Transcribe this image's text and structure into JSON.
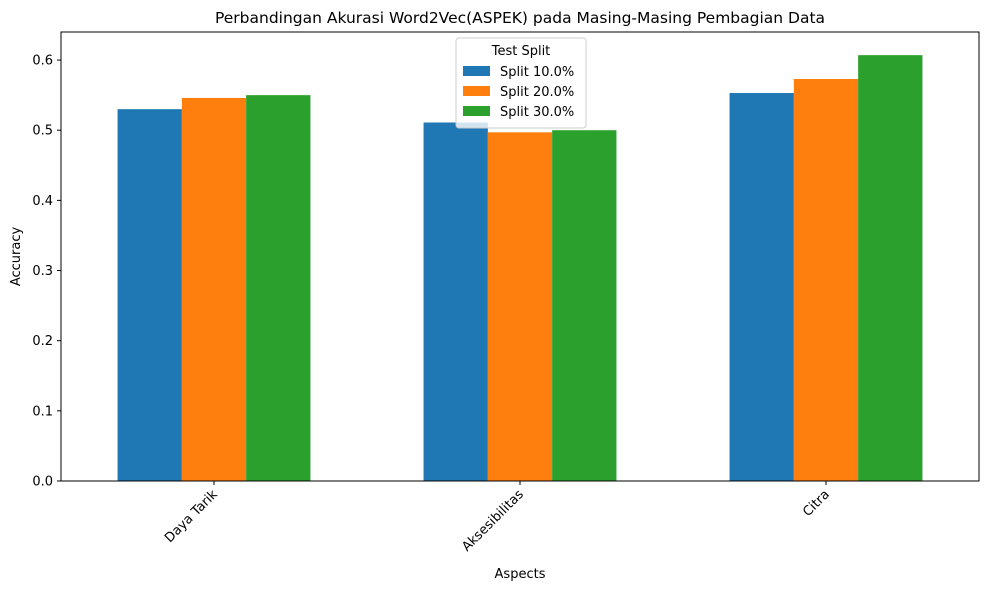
{
  "chart_data": {
    "type": "bar",
    "title": "Perbandingan Akurasi Word2Vec(ASPEK) pada Masing-Masing Pembagian Data",
    "xlabel": "Aspects",
    "ylabel": "Accuracy",
    "categories": [
      "Daya Tarik",
      "Aksesibilitas",
      "Citra"
    ],
    "series": [
      {
        "name": "Split 10.0%",
        "values": [
          0.53,
          0.511,
          0.553
        ],
        "color": "#1f77b4"
      },
      {
        "name": "Split 20.0%",
        "values": [
          0.546,
          0.497,
          0.573
        ],
        "color": "#ff7f0e"
      },
      {
        "name": "Split 30.0%",
        "values": [
          0.55,
          0.5,
          0.607
        ],
        "color": "#2ca02c"
      }
    ],
    "ylim": [
      0,
      0.64
    ],
    "yticks": [
      "0.0",
      "0.1",
      "0.2",
      "0.3",
      "0.4",
      "0.5",
      "0.6"
    ],
    "ytick_values": [
      0.0,
      0.1,
      0.2,
      0.3,
      0.4,
      0.5,
      0.6
    ],
    "legend": {
      "title": "Test Split",
      "placement": "top-center"
    },
    "grid": false,
    "xtick_rotation": 45
  }
}
